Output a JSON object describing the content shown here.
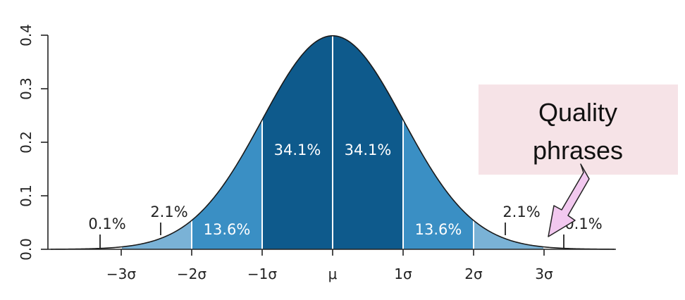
{
  "chart_data": {
    "type": "area",
    "title": "",
    "xlabel": "",
    "ylabel": "",
    "xlim": [
      -4,
      4
    ],
    "ylim": [
      0,
      0.4
    ],
    "y_ticks": [
      {
        "value": 0.0,
        "label": "0.0"
      },
      {
        "value": 0.1,
        "label": "0.1"
      },
      {
        "value": 0.2,
        "label": "0.2"
      },
      {
        "value": 0.3,
        "label": "0.3"
      },
      {
        "value": 0.4,
        "label": "0.4"
      }
    ],
    "x_ticks": [
      {
        "value": -3,
        "label": "−3σ"
      },
      {
        "value": -2,
        "label": "−2σ"
      },
      {
        "value": -1,
        "label": "−1σ"
      },
      {
        "value": 0,
        "label": "μ"
      },
      {
        "value": 1,
        "label": "1σ"
      },
      {
        "value": 2,
        "label": "2σ"
      },
      {
        "value": 3,
        "label": "3σ"
      }
    ],
    "regions": [
      {
        "from": -4,
        "to": -3,
        "percent": "0.1%",
        "color": "#ffffff"
      },
      {
        "from": -3,
        "to": -2,
        "percent": "2.1%",
        "color": "#7ab2d6"
      },
      {
        "from": -2,
        "to": -1,
        "percent": "13.6%",
        "color": "#3a8fc4"
      },
      {
        "from": -1,
        "to": 0,
        "percent": "34.1%",
        "color": "#0e5a8c"
      },
      {
        "from": 0,
        "to": 1,
        "percent": "34.1%",
        "color": "#0e5a8c"
      },
      {
        "from": 1,
        "to": 2,
        "percent": "13.6%",
        "color": "#3a8fc4"
      },
      {
        "from": 2,
        "to": 3,
        "percent": "2.1%",
        "color": "#7ab2d6"
      },
      {
        "from": 3,
        "to": 4,
        "percent": "0.1%",
        "color": "#ffffff"
      }
    ],
    "callout": {
      "line1": "Quality",
      "line2": "phrases",
      "box_color": "#f6e3e7",
      "arrow_color": "#f2c8ef"
    }
  }
}
